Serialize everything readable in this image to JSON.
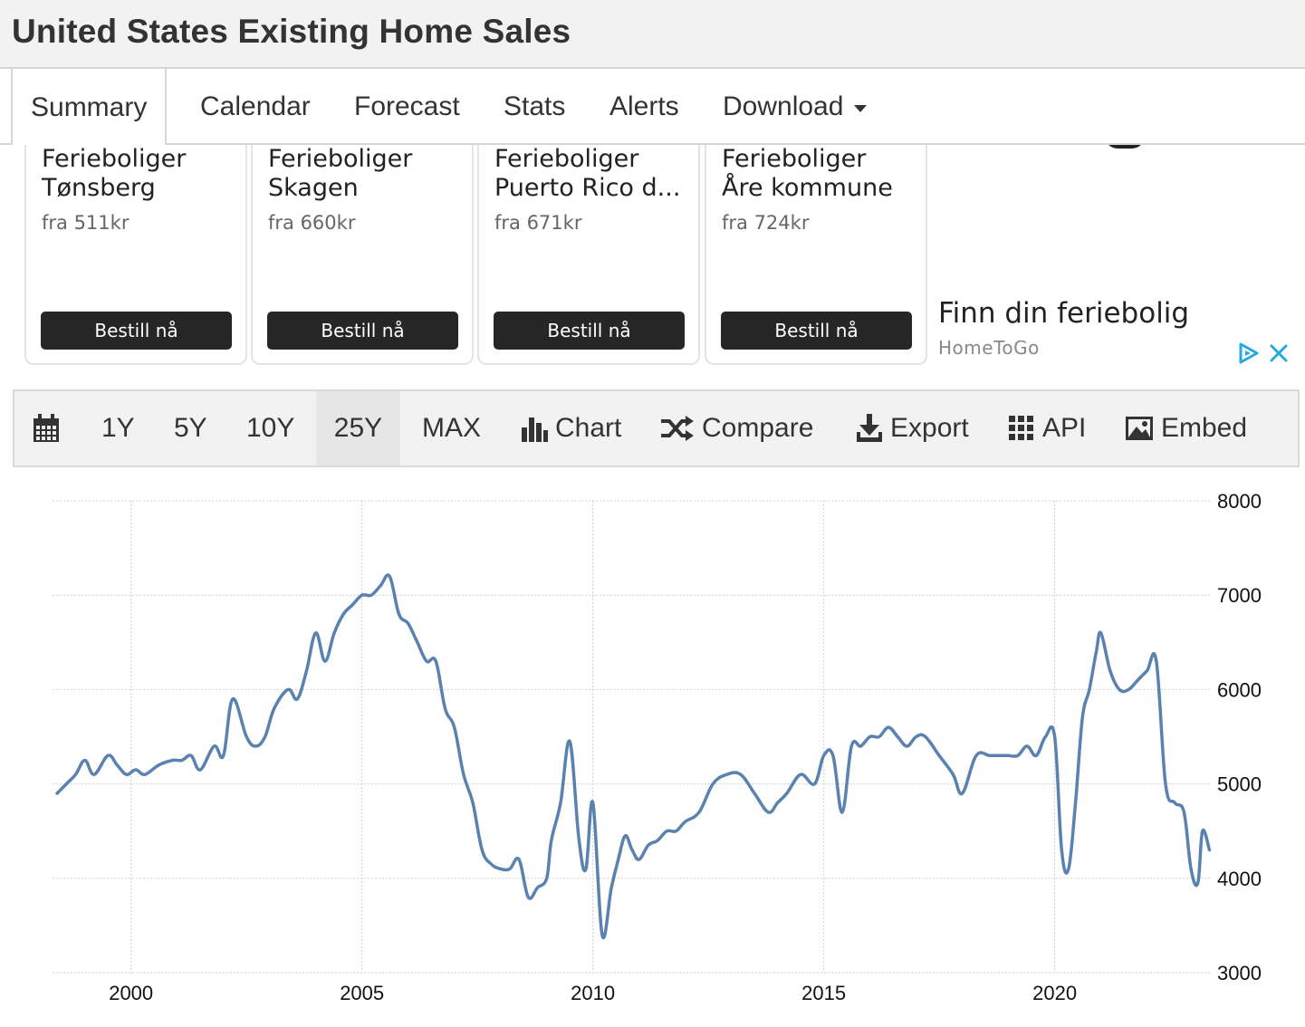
{
  "page": {
    "title": "United States Existing Home Sales"
  },
  "tabs": [
    {
      "label": "Summary"
    },
    {
      "label": "Calendar"
    },
    {
      "label": "Forecast"
    },
    {
      "label": "Stats"
    },
    {
      "label": "Alerts"
    },
    {
      "label": "Download"
    }
  ],
  "ad": {
    "cards": [
      {
        "name": "Ferieboliger\nTønsberg",
        "price": "fra 511kr",
        "button": "Bestill nå"
      },
      {
        "name": "Ferieboliger\nSkagen",
        "price": "fra 660kr",
        "button": "Bestill nå"
      },
      {
        "name": "Ferieboliger\nPuerto Rico d...",
        "price": "fra 671kr",
        "button": "Bestill nå"
      },
      {
        "name": "Ferieboliger\nÅre kommune",
        "price": "fra 724kr",
        "button": "Bestill nå"
      }
    ],
    "side_title": "Finn din feriebolig",
    "side_brand": "HomeToGo",
    "accent_color": "#2aa7e0"
  },
  "toolbar": {
    "calendar_icon": "calendar-icon",
    "ranges": [
      "1Y",
      "5Y",
      "10Y",
      "25Y",
      "MAX"
    ],
    "selected_range": "25Y",
    "chart_label": "Chart",
    "compare_label": "Compare",
    "export_label": "Export",
    "api_label": "API",
    "embed_label": "Embed"
  },
  "chart_data": {
    "type": "line",
    "title": "",
    "xlabel": "",
    "ylabel": "",
    "xlim": [
      1998.3,
      2023.4
    ],
    "ylim": [
      3000,
      8000
    ],
    "x_ticks": [
      "2000",
      "2005",
      "2010",
      "2015",
      "2020"
    ],
    "y_ticks": [
      "3000",
      "4000",
      "5000",
      "6000",
      "7000",
      "8000"
    ],
    "grid": true,
    "line_color": "#5a82b0",
    "series": [
      {
        "x": [
          1998.4,
          1998.6,
          1998.8,
          1999.0,
          1999.2,
          1999.5,
          1999.7,
          1999.9,
          2000.1,
          2000.3,
          2000.6,
          2000.9,
          2001.1,
          2001.3,
          2001.5,
          2001.8,
          2002.0,
          2002.2,
          2002.5,
          2002.7,
          2002.9,
          2003.1,
          2003.4,
          2003.6,
          2003.8,
          2004.0,
          2004.2,
          2004.4,
          2004.6,
          2004.8,
          2005.0,
          2005.2,
          2005.4,
          2005.6,
          2005.8,
          2006.0,
          2006.2,
          2006.4,
          2006.6,
          2006.8,
          2007.0,
          2007.2,
          2007.4,
          2007.6,
          2007.8,
          2008.0,
          2008.2,
          2008.4,
          2008.6,
          2008.8,
          2009.0,
          2009.1,
          2009.3,
          2009.5,
          2009.7,
          2009.85,
          2010.0,
          2010.2,
          2010.4,
          2010.55,
          2010.7,
          2010.85,
          2011.0,
          2011.2,
          2011.4,
          2011.6,
          2011.8,
          2012.0,
          2012.3,
          2012.6,
          2012.9,
          2013.2,
          2013.5,
          2013.8,
          2014.0,
          2014.2,
          2014.5,
          2014.8,
          2015.0,
          2015.2,
          2015.4,
          2015.6,
          2015.8,
          2016.0,
          2016.2,
          2016.4,
          2016.6,
          2016.8,
          2017.0,
          2017.2,
          2017.5,
          2017.8,
          2018.0,
          2018.3,
          2018.6,
          2018.9,
          2019.0,
          2019.2,
          2019.4,
          2019.6,
          2019.8,
          2020.0,
          2020.15,
          2020.3,
          2020.45,
          2020.6,
          2020.75,
          2020.9,
          2021.0,
          2021.2,
          2021.4,
          2021.6,
          2021.8,
          2022.0,
          2022.2,
          2022.4,
          2022.6,
          2022.8,
          2022.95,
          2023.1,
          2023.2,
          2023.35
        ],
        "values": [
          4900,
          5000,
          5100,
          5250,
          5100,
          5300,
          5200,
          5100,
          5150,
          5100,
          5200,
          5250,
          5250,
          5300,
          5150,
          5400,
          5300,
          5900,
          5500,
          5400,
          5500,
          5800,
          6000,
          5900,
          6200,
          6600,
          6300,
          6600,
          6800,
          6900,
          7000,
          7000,
          7100,
          7200,
          6800,
          6700,
          6500,
          6300,
          6300,
          5800,
          5600,
          5100,
          4800,
          4300,
          4150,
          4100,
          4100,
          4200,
          3800,
          3900,
          4000,
          4400,
          4800,
          5450,
          4400,
          4100,
          4800,
          3400,
          3900,
          4200,
          4450,
          4300,
          4200,
          4350,
          4400,
          4500,
          4500,
          4600,
          4700,
          5000,
          5100,
          5100,
          4900,
          4700,
          4800,
          4900,
          5100,
          5000,
          5300,
          5300,
          4700,
          5400,
          5400,
          5500,
          5500,
          5600,
          5500,
          5400,
          5500,
          5500,
          5300,
          5100,
          4900,
          5300,
          5300,
          5300,
          5300,
          5300,
          5400,
          5300,
          5500,
          5500,
          4300,
          4100,
          4800,
          5700,
          6000,
          6400,
          6600,
          6200,
          6000,
          6000,
          6100,
          6200,
          6300,
          5000,
          4800,
          4700,
          4100,
          3950,
          4500,
          4300
        ]
      }
    ]
  }
}
